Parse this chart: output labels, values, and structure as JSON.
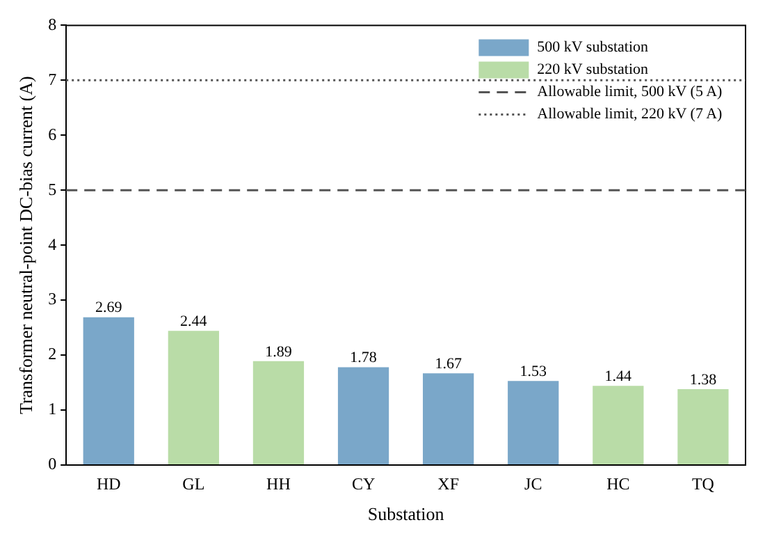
{
  "chart_data": {
    "type": "bar",
    "xlabel": "Substation",
    "ylabel": "Transformer neutral-point DC-bias current (A)",
    "categories": [
      "HD",
      "GL",
      "HH",
      "CY",
      "XF",
      "JC",
      "HC",
      "TQ"
    ],
    "series": [
      {
        "name": "500 kV substation",
        "color": "#7aa7c9",
        "values": [
          2.69,
          null,
          null,
          1.78,
          1.67,
          1.53,
          null,
          null
        ]
      },
      {
        "name": "220 kV substation",
        "color": "#b9dca7",
        "values": [
          null,
          2.44,
          1.89,
          null,
          null,
          null,
          1.44,
          1.38
        ]
      }
    ],
    "ref_lines": [
      {
        "axis": "y",
        "value": 5,
        "label": "Allowable limit, 500 kV (5 A)",
        "color": "#555555",
        "line_style": "dashed"
      },
      {
        "axis": "y",
        "value": 7,
        "label": "Allowable limit, 220 kV (7 A)",
        "color": "#555555",
        "line_style": "dotted"
      }
    ],
    "ylim": [
      0,
      8
    ],
    "yticks": [
      0,
      1,
      2,
      3,
      4,
      5,
      6,
      7,
      8
    ],
    "grid": false,
    "legend": "top right",
    "data_labels": true
  }
}
